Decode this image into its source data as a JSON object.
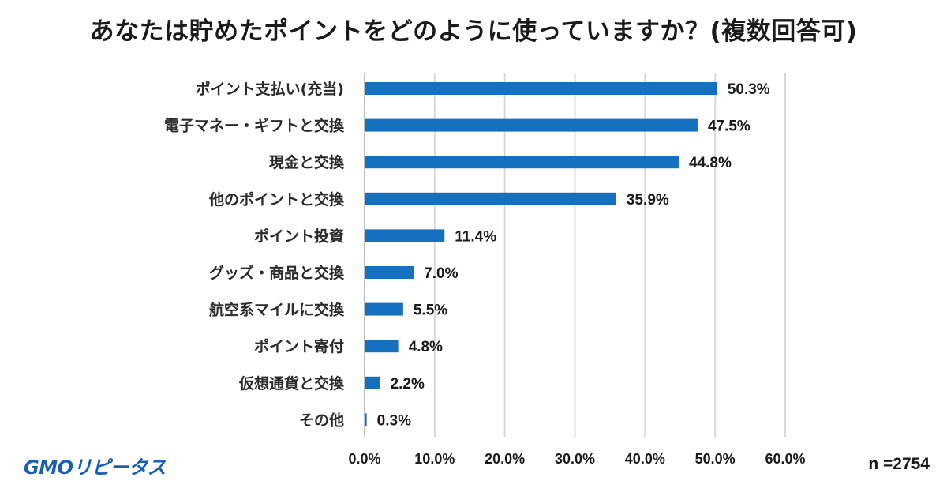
{
  "page": {
    "title": "あなたは貯めたポイントをどのように使っていますか？(複数回答可)",
    "logo_text": "GMOリピータス",
    "sample_size": "n =2754"
  },
  "colors": {
    "bar": "#1670C0",
    "grid": "#d9d9d9",
    "axis": "#bfbfbf"
  },
  "chart_data": {
    "type": "bar",
    "orientation": "horizontal",
    "title": "あなたは貯めたポイントをどのように使っていますか？(複数回答可)",
    "categories": [
      "ポイント支払い(充当)",
      "電子マネー・ギフトと交換",
      "現金と交換",
      "他のポイントと交換",
      "ポイント投資",
      "グッズ・商品と交換",
      "航空系マイルに交換",
      "ポイント寄付",
      "仮想通貨と交換",
      "その他"
    ],
    "values": [
      50.3,
      47.5,
      44.8,
      35.9,
      11.4,
      7.0,
      5.5,
      4.8,
      2.2,
      0.3
    ],
    "value_labels": [
      "50.3%",
      "47.5%",
      "44.8%",
      "35.9%",
      "11.4%",
      "7.0%",
      "5.5%",
      "4.8%",
      "2.2%",
      "0.3%"
    ],
    "xlim": [
      0,
      60
    ],
    "xticks": [
      0,
      10,
      20,
      30,
      40,
      50,
      60
    ],
    "xtick_labels": [
      "0.0%",
      "10.0%",
      "20.0%",
      "30.0%",
      "40.0%",
      "50.0%",
      "60.0%"
    ],
    "grid": true,
    "xlabel": "",
    "ylabel": ""
  }
}
